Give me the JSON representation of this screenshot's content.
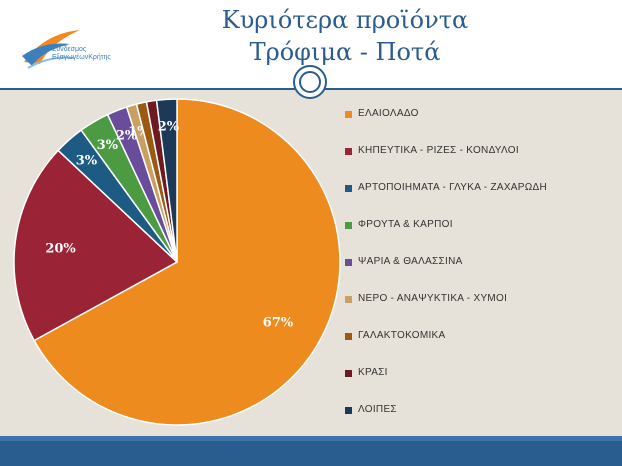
{
  "header": {
    "title_line1": "Κυριότερα προϊόντα",
    "title_line2": "Τρόφιμα - Ποτά",
    "logo_text_line1": "Σύνδεσμος",
    "logo_text_line2": "ΕξαγωγέωνΚρήτης"
  },
  "chart_data": {
    "type": "pie",
    "title": "",
    "legend_position": "right",
    "slices": [
      {
        "label": "ΕΛΑΙΟΛΑΔΟ",
        "value": 67,
        "display": "67%",
        "color": "#ed8b1f"
      },
      {
        "label": "ΚΗΠΕΥΤΙΚΑ - ΡΙΖΕΣ - ΚΟΝΔΥΛΟΙ",
        "value": 20,
        "display": "20%",
        "color": "#9b2336"
      },
      {
        "label": "ΑΡΤΟΠΟΙΗΜΑΤΑ - ΓΛΥΚΑ - ΖΑΧΑΡΩΔΗ",
        "value": 3,
        "display": "3%",
        "color": "#1d5b82"
      },
      {
        "label": "ΦΡΟΥΤΑ & ΚΑΡΠΟΙ",
        "value": 3,
        "display": "3%",
        "color": "#4c9a42"
      },
      {
        "label": "ΨΑΡΙΑ & ΘΑΛΑΣΣΙΝΑ",
        "value": 2,
        "display": "2%",
        "color": "#6a4d9a"
      },
      {
        "label": "ΝΕΡΟ - ΑΝΑΨΥΚΤΙΚΑ - ΧΥΜΟΙ",
        "value": 1,
        "display": "1%",
        "color": "#c9a063"
      },
      {
        "label": "ΓΑΛΑΚΤΟΚΟΜΙΚΑ",
        "value": 1,
        "display": "",
        "color": "#9b5a14"
      },
      {
        "label": "ΚΡΑΣΙ",
        "value": 1,
        "display": "",
        "color": "#6e1a22"
      },
      {
        "label": "ΛΟΙΠΕΣ",
        "value": 2,
        "display": "2%",
        "color": "#1c3a57"
      }
    ]
  }
}
